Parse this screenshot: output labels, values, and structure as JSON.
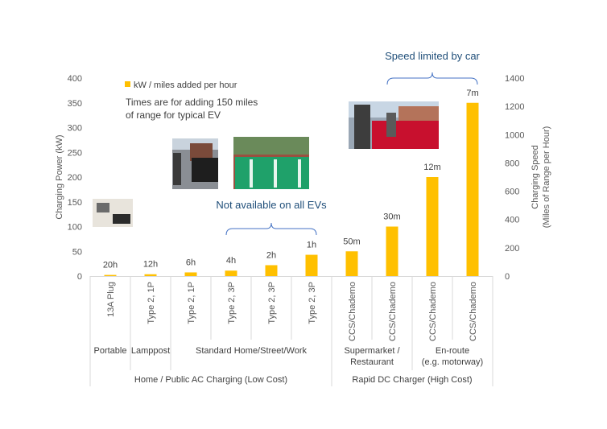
{
  "chart_data": {
    "type": "bar",
    "categories": [
      "13A Plug",
      "Type 2, 1P",
      "Type 2, 1P",
      "Type 2, 3P",
      "Type 2, 3P",
      "Type 2, 3P",
      "CCS/Chademo",
      "CCS/Chademo",
      "CCS/Chademo",
      "CCS/Chademo"
    ],
    "values": [
      2.3,
      3.7,
      7.4,
      11,
      22,
      43,
      50,
      100,
      200,
      350
    ],
    "bar_labels": [
      "20h",
      "12h",
      "6h",
      "4h",
      "2h",
      "1h",
      "50m",
      "30m",
      "12m",
      "7m"
    ],
    "series": [
      {
        "name": "kW / miles added per hour",
        "values": [
          2.3,
          3.7,
          7.4,
          11,
          22,
          43,
          50,
          100,
          200,
          350
        ]
      }
    ],
    "ylabel": "Charging Power (kW)",
    "y2label": [
      "Charging Speed",
      "(Miles of Range per Hour)"
    ],
    "ylim": [
      0,
      400
    ],
    "y2lim": [
      0,
      1400
    ],
    "yticks": [
      0,
      50,
      100,
      150,
      200,
      250,
      300,
      350,
      400
    ],
    "y2ticks": [
      0,
      200,
      400,
      600,
      800,
      1000,
      1200,
      1400
    ],
    "bar_color": "#FFC000",
    "grid": false,
    "legend_position": "top-left",
    "groups_level1": [
      {
        "label": [
          "Portable"
        ],
        "span": [
          0,
          0
        ]
      },
      {
        "label": [
          "Lamppost"
        ],
        "span": [
          1,
          1
        ]
      },
      {
        "label": [
          "Standard Home/Street/Work"
        ],
        "span": [
          2,
          5
        ]
      },
      {
        "label": [
          "Supermarket /",
          "Restaurant"
        ],
        "span": [
          6,
          7
        ]
      },
      {
        "label": [
          "En-route",
          "(e.g. motorway)"
        ],
        "span": [
          8,
          9
        ]
      }
    ],
    "groups_level2": [
      {
        "label": "Home / Public AC Charging (Low Cost)",
        "span": [
          0,
          5
        ]
      },
      {
        "label": "Rapid DC Charger (High Cost)",
        "span": [
          6,
          9
        ]
      }
    ],
    "annotations": [
      {
        "text": "Not available on all EVs",
        "span": [
          3,
          5
        ]
      },
      {
        "text": "Speed limited by car",
        "span": [
          7,
          9
        ]
      }
    ],
    "note": [
      "Times are for adding 150 miles",
      "of range for typical EV"
    ]
  }
}
